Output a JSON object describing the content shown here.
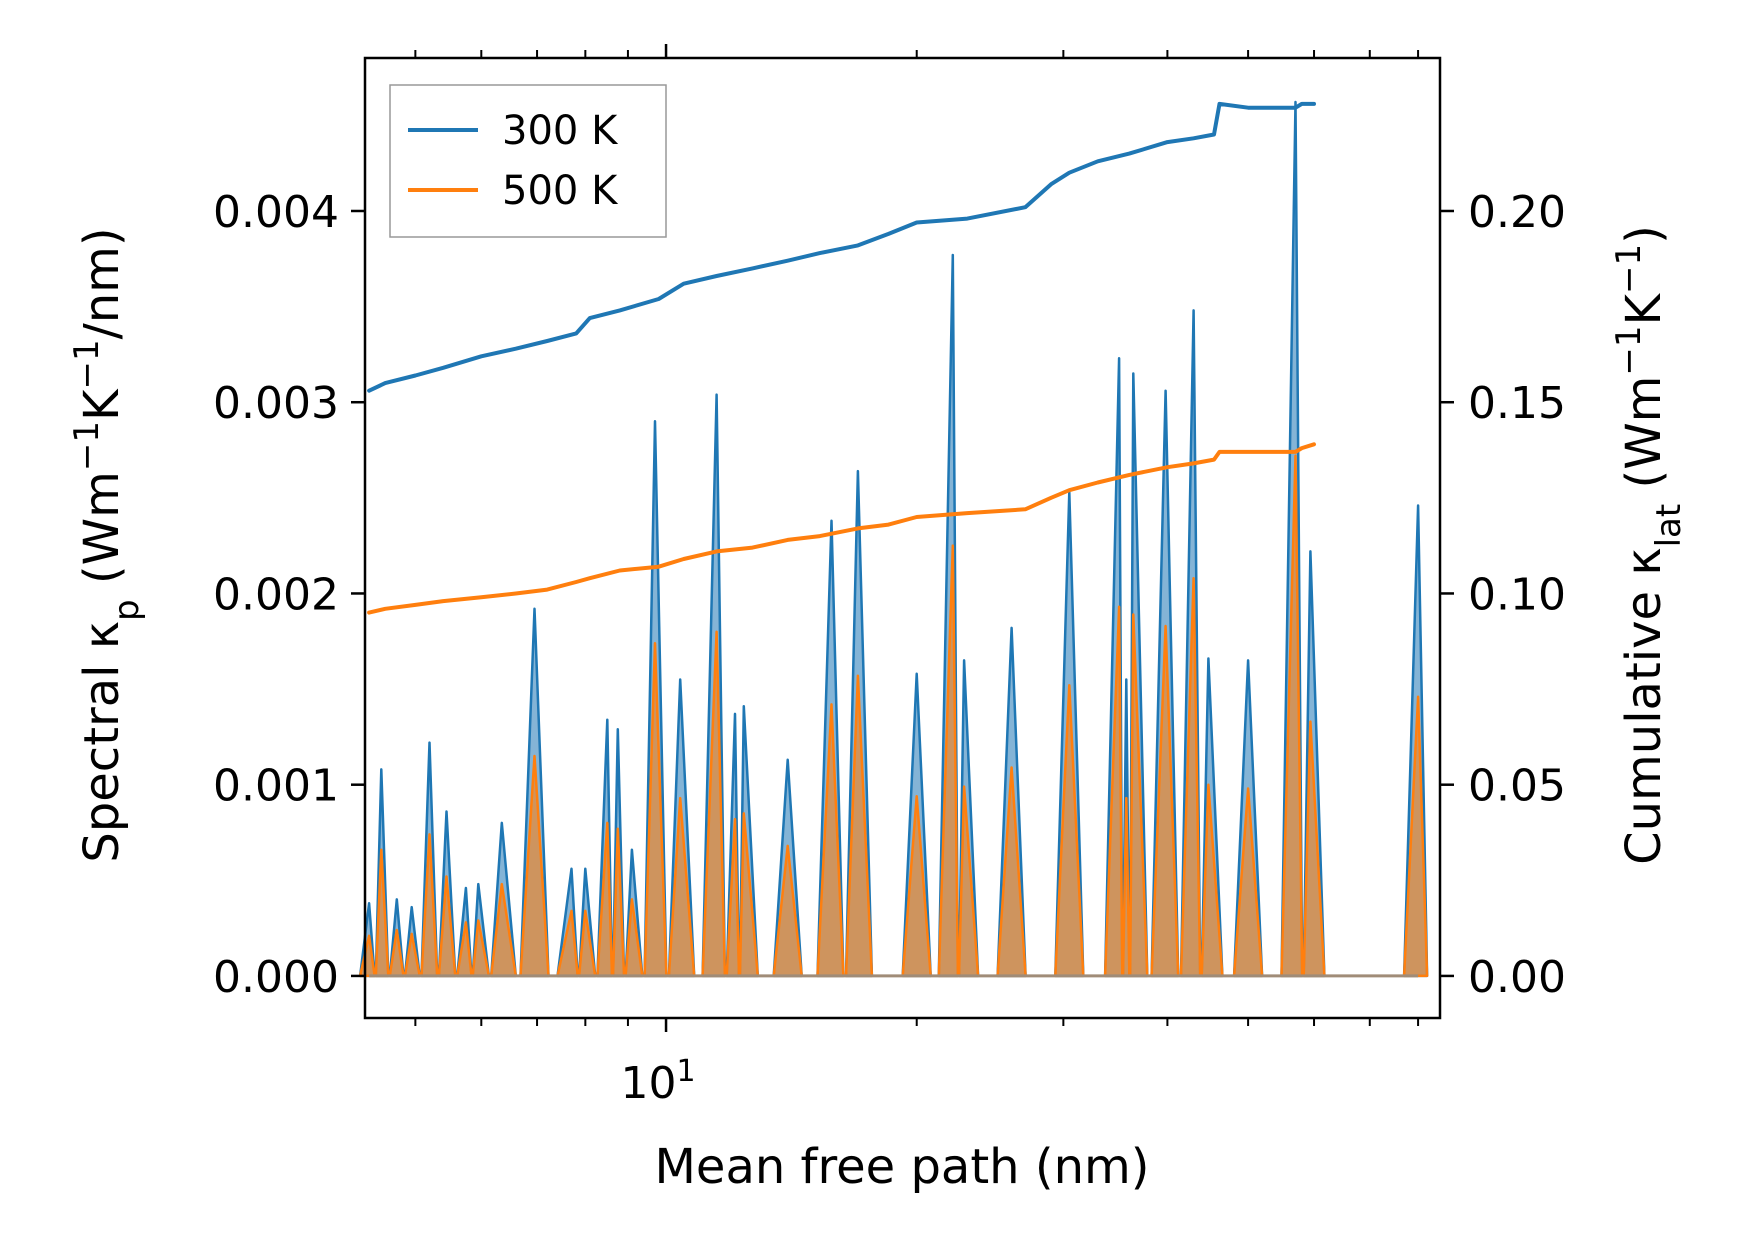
{
  "chart_data": {
    "type": "line",
    "xscale": "log",
    "xlim": [
      4.35,
      85.0
    ],
    "ylim_left": [
      -0.00022,
      0.0048
    ],
    "ylim_right": [
      -0.011,
      0.24
    ],
    "xlabel": "Mean free path (nm)",
    "ylabel_left": "Spectral κp (Wm−1K−1/nm)",
    "ylabel_right": "Cumulative κlat (Wm−1K−1)",
    "x_ticks": [
      {
        "value": 10,
        "base": "10",
        "exp": "1"
      }
    ],
    "x_minor_ticks": [
      5,
      6,
      7,
      8,
      9,
      20,
      30,
      40,
      50,
      60,
      70,
      80
    ],
    "y_left_ticks": [
      {
        "value": 0.0,
        "label": "0.000"
      },
      {
        "value": 0.001,
        "label": "0.001"
      },
      {
        "value": 0.002,
        "label": "0.002"
      },
      {
        "value": 0.003,
        "label": "0.003"
      },
      {
        "value": 0.004,
        "label": "0.004"
      }
    ],
    "y_right_ticks": [
      {
        "value": 0.0,
        "label": "0.00"
      },
      {
        "value": 0.05,
        "label": "0.05"
      },
      {
        "value": 0.1,
        "label": "0.10"
      },
      {
        "value": 0.15,
        "label": "0.15"
      },
      {
        "value": 0.2,
        "label": "0.20"
      }
    ],
    "legend": {
      "position": "top-left",
      "entries": [
        {
          "label": "300 K",
          "color": "#1f77b4"
        },
        {
          "label": "500 K",
          "color": "#ff7f0e"
        }
      ]
    },
    "cumulative": [
      {
        "name": "300 K",
        "color": "#1f77b4",
        "points": [
          [
            4.4,
            0.153
          ],
          [
            4.6,
            0.155
          ],
          [
            5.0,
            0.157
          ],
          [
            5.4,
            0.159
          ],
          [
            6.0,
            0.162
          ],
          [
            6.6,
            0.164
          ],
          [
            7.2,
            0.166
          ],
          [
            7.8,
            0.168
          ],
          [
            8.1,
            0.172
          ],
          [
            8.8,
            0.174
          ],
          [
            9.8,
            0.177
          ],
          [
            10.5,
            0.181
          ],
          [
            11.5,
            0.183
          ],
          [
            12.7,
            0.185
          ],
          [
            14.0,
            0.187
          ],
          [
            15.3,
            0.189
          ],
          [
            17.0,
            0.191
          ],
          [
            18.5,
            0.194
          ],
          [
            20.0,
            0.197
          ],
          [
            23.0,
            0.198
          ],
          [
            27.0,
            0.201
          ],
          [
            29.0,
            0.207
          ],
          [
            30.5,
            0.21
          ],
          [
            33.0,
            0.213
          ],
          [
            36.0,
            0.215
          ],
          [
            40.0,
            0.218
          ],
          [
            43.0,
            0.219
          ],
          [
            45.5,
            0.22
          ],
          [
            46.2,
            0.228
          ],
          [
            50.0,
            0.227
          ],
          [
            57.0,
            0.227
          ],
          [
            58.0,
            0.228
          ],
          [
            60.0,
            0.228
          ]
        ]
      },
      {
        "name": "500 K",
        "color": "#ff7f0e",
        "points": [
          [
            4.4,
            0.095
          ],
          [
            4.6,
            0.096
          ],
          [
            5.0,
            0.097
          ],
          [
            5.4,
            0.098
          ],
          [
            6.0,
            0.099
          ],
          [
            6.6,
            0.1
          ],
          [
            7.2,
            0.101
          ],
          [
            7.8,
            0.103
          ],
          [
            8.1,
            0.104
          ],
          [
            8.8,
            0.106
          ],
          [
            9.8,
            0.107
          ],
          [
            10.5,
            0.109
          ],
          [
            11.5,
            0.111
          ],
          [
            12.7,
            0.112
          ],
          [
            14.0,
            0.114
          ],
          [
            15.3,
            0.115
          ],
          [
            17.0,
            0.117
          ],
          [
            18.5,
            0.118
          ],
          [
            20.0,
            0.12
          ],
          [
            23.0,
            0.121
          ],
          [
            27.0,
            0.122
          ],
          [
            29.0,
            0.125
          ],
          [
            30.5,
            0.127
          ],
          [
            33.0,
            0.129
          ],
          [
            36.0,
            0.131
          ],
          [
            40.0,
            0.133
          ],
          [
            43.0,
            0.134
          ],
          [
            45.5,
            0.135
          ],
          [
            46.2,
            0.137
          ],
          [
            50.0,
            0.137
          ],
          [
            57.0,
            0.137
          ],
          [
            58.0,
            0.138
          ],
          [
            60.0,
            0.139
          ]
        ]
      }
    ],
    "spectral": [
      {
        "name": "300 K",
        "color": "#1f77b4",
        "peaks": [
          [
            4.4,
            0.00038
          ],
          [
            4.55,
            0.00108
          ],
          [
            4.75,
            0.0004
          ],
          [
            4.95,
            0.00036
          ],
          [
            5.2,
            0.00122
          ],
          [
            5.45,
            0.00086
          ],
          [
            5.75,
            0.00046
          ],
          [
            5.95,
            0.00048
          ],
          [
            6.35,
            0.0008
          ],
          [
            6.95,
            0.00192
          ],
          [
            7.7,
            0.00056
          ],
          [
            8.0,
            0.00056
          ],
          [
            8.5,
            0.00134
          ],
          [
            8.75,
            0.00129
          ],
          [
            9.1,
            0.00066
          ],
          [
            9.7,
            0.0029
          ],
          [
            10.4,
            0.00155
          ],
          [
            11.5,
            0.00304
          ],
          [
            12.1,
            0.00137
          ],
          [
            12.4,
            0.00141
          ],
          [
            14.0,
            0.00113
          ],
          [
            15.8,
            0.00238
          ],
          [
            17.0,
            0.00264
          ],
          [
            20.0,
            0.00158
          ],
          [
            22.1,
            0.00377
          ],
          [
            22.8,
            0.00165
          ],
          [
            26.0,
            0.00182
          ],
          [
            30.5,
            0.00253
          ],
          [
            35.0,
            0.00323
          ],
          [
            35.7,
            0.00155
          ],
          [
            36.4,
            0.00315
          ],
          [
            39.8,
            0.00306
          ],
          [
            43.0,
            0.00348
          ],
          [
            44.8,
            0.00166
          ],
          [
            50.0,
            0.00165
          ],
          [
            57.0,
            0.00457
          ],
          [
            59.4,
            0.00222
          ],
          [
            80.0,
            0.00246
          ]
        ]
      },
      {
        "name": "500 K",
        "color": "#ff7f0e",
        "peaks": [
          [
            4.4,
            0.00021
          ],
          [
            4.55,
            0.00066
          ],
          [
            4.75,
            0.00024
          ],
          [
            4.95,
            0.00022
          ],
          [
            5.2,
            0.00074
          ],
          [
            5.45,
            0.00052
          ],
          [
            5.75,
            0.00028
          ],
          [
            5.95,
            0.00029
          ],
          [
            6.35,
            0.00048
          ],
          [
            6.95,
            0.00115
          ],
          [
            7.7,
            0.00034
          ],
          [
            8.0,
            0.00034
          ],
          [
            8.5,
            0.0008
          ],
          [
            8.75,
            0.00077
          ],
          [
            9.1,
            0.0004
          ],
          [
            9.7,
            0.00174
          ],
          [
            10.4,
            0.00093
          ],
          [
            11.5,
            0.0018
          ],
          [
            12.1,
            0.00082
          ],
          [
            12.4,
            0.00085
          ],
          [
            14.0,
            0.00068
          ],
          [
            15.8,
            0.00142
          ],
          [
            17.0,
            0.00157
          ],
          [
            20.0,
            0.00094
          ],
          [
            22.1,
            0.00225
          ],
          [
            22.8,
            0.00099
          ],
          [
            26.0,
            0.00109
          ],
          [
            30.5,
            0.00152
          ],
          [
            35.0,
            0.00193
          ],
          [
            35.7,
            0.00093
          ],
          [
            36.4,
            0.00189
          ],
          [
            39.8,
            0.00183
          ],
          [
            43.0,
            0.00208
          ],
          [
            44.8,
            0.001
          ],
          [
            50.0,
            0.00098
          ],
          [
            57.0,
            0.00272
          ],
          [
            59.4,
            0.00133
          ],
          [
            80.0,
            0.00146
          ]
        ]
      }
    ]
  }
}
